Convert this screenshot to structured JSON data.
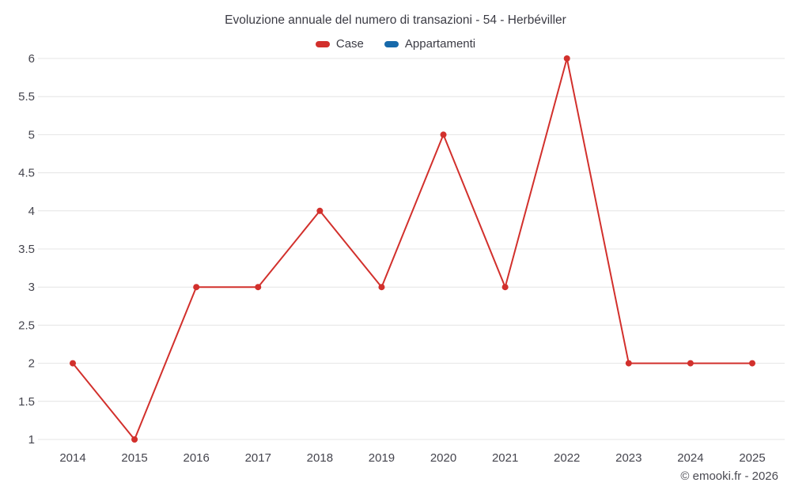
{
  "header": {
    "title": "Evoluzione annuale del numero di transazioni - 54 - Herbéviller"
  },
  "footer": {
    "copyright": "© emooki.fr - 2026"
  },
  "chart_data": {
    "type": "line",
    "title": "Evoluzione annuale del numero di transazioni - 54 - Herbéviller",
    "categories": [
      "2014",
      "2015",
      "2016",
      "2017",
      "2018",
      "2019",
      "2020",
      "2021",
      "2022",
      "2023",
      "2024",
      "2025"
    ],
    "series": [
      {
        "name": "Case",
        "color": "#d2302c",
        "values": [
          2,
          1,
          3,
          3,
          4,
          3,
          5,
          3,
          6,
          2,
          2,
          2
        ]
      },
      {
        "name": "Appartamenti",
        "color": "#1769aa",
        "values": []
      }
    ],
    "xlabel": "",
    "ylabel": "",
    "ylim": [
      1,
      6
    ],
    "ytick_step": 0.5,
    "grid": true,
    "legend_position": "top",
    "grid_color": "#e4e4e4",
    "axis_label_color": "#45454e",
    "axis_font_size": 15,
    "marker_radius": 4,
    "line_width": 2
  }
}
